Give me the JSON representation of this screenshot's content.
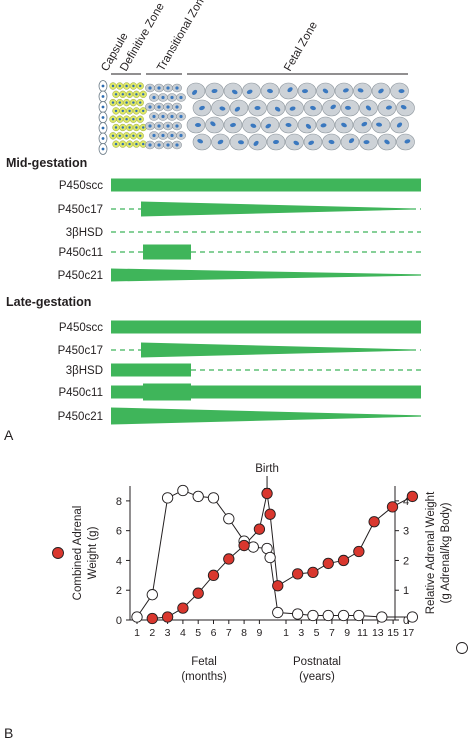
{
  "zones": {
    "capsule": "Capsule",
    "definitive": "Definitive Zone",
    "transitional": "Transitional Zone",
    "fetal": "Fetal Zone"
  },
  "panel_a": {
    "label": "A",
    "mid": {
      "title": "Mid-gestation",
      "rows": [
        {
          "name": "P450scc"
        },
        {
          "name": "P450c17"
        },
        {
          "name": "3βHSD"
        },
        {
          "name": "P450c11"
        },
        {
          "name": "P450c21"
        }
      ]
    },
    "late": {
      "title": "Late-gestation",
      "rows": [
        {
          "name": "P450scc"
        },
        {
          "name": "P450c17"
        },
        {
          "name": "3βHSD"
        },
        {
          "name": "P450c11"
        },
        {
          "name": "P450c21"
        }
      ]
    }
  },
  "panel_b": {
    "label": "B",
    "birth_label": "Birth",
    "left_axis_title": [
      "Combined Adrenal",
      "Weight (g)"
    ],
    "right_axis_title": [
      "Relative Adrenal Weight",
      "(g Adrenal/kg Body)"
    ],
    "fetal_label": [
      "Fetal",
      "(months)"
    ],
    "postnatal_label": [
      "Postnatal",
      "(years)"
    ],
    "colors": {
      "filled": "#d9372e",
      "open": "#ffffff",
      "bar": "#3fb55a"
    }
  },
  "chart_data": {
    "type": "scatter",
    "left_axis": {
      "ylim": [
        0,
        9
      ],
      "ticks": [
        "0",
        "2",
        "4",
        "6",
        "8"
      ]
    },
    "right_axis": {
      "ylim": [
        0,
        4.5
      ],
      "ticks": [
        "0",
        "1",
        "2",
        "3",
        "4"
      ]
    },
    "x_ticks_fetal": [
      "1",
      "2",
      "3",
      "4",
      "5",
      "6",
      "7",
      "8",
      "9"
    ],
    "x_ticks_postnatal": [
      "1",
      "3",
      "5",
      "7",
      "9",
      "11",
      "13",
      "15",
      "17"
    ],
    "series": [
      {
        "axis": "left",
        "points": [
          {
            "x": 2,
            "y": 0.1
          },
          {
            "x": 3,
            "y": 0.2
          },
          {
            "x": 4,
            "y": 0.8
          },
          {
            "x": 5,
            "y": 1.8
          },
          {
            "x": 6,
            "y": 3.0
          },
          {
            "x": 7,
            "y": 4.1
          },
          {
            "x": 8,
            "y": 5.0
          },
          {
            "x": 9,
            "y": 6.1
          },
          {
            "x": 9.5,
            "y": 8.5
          },
          {
            "x": 9.7,
            "y": 7.1
          },
          {
            "x": 10.2,
            "y": 2.3
          },
          {
            "x": 11.5,
            "y": 3.1
          },
          {
            "x": 12.5,
            "y": 3.2
          },
          {
            "x": 13.5,
            "y": 3.8
          },
          {
            "x": 14.5,
            "y": 4.0
          },
          {
            "x": 15.5,
            "y": 4.6
          },
          {
            "x": 16.5,
            "y": 6.6
          },
          {
            "x": 17.7,
            "y": 7.6
          },
          {
            "x": 19,
            "y": 8.3
          }
        ]
      },
      {
        "axis": "right",
        "points": [
          {
            "x": 1,
            "y": 0.1
          },
          {
            "x": 2,
            "y": 0.85
          },
          {
            "x": 3,
            "y": 4.1
          },
          {
            "x": 4,
            "y": 4.35
          },
          {
            "x": 5,
            "y": 4.15
          },
          {
            "x": 6,
            "y": 4.1
          },
          {
            "x": 7,
            "y": 3.4
          },
          {
            "x": 8,
            "y": 2.65
          },
          {
            "x": 8.6,
            "y": 2.45
          },
          {
            "x": 9.5,
            "y": 2.4
          },
          {
            "x": 9.7,
            "y": 2.1
          },
          {
            "x": 10.2,
            "y": 0.25
          },
          {
            "x": 11.5,
            "y": 0.2
          },
          {
            "x": 12.5,
            "y": 0.15
          },
          {
            "x": 13.5,
            "y": 0.15
          },
          {
            "x": 14.5,
            "y": 0.15
          },
          {
            "x": 15.5,
            "y": 0.15
          },
          {
            "x": 17,
            "y": 0.1
          },
          {
            "x": 19,
            "y": 0.1
          }
        ]
      }
    ]
  }
}
